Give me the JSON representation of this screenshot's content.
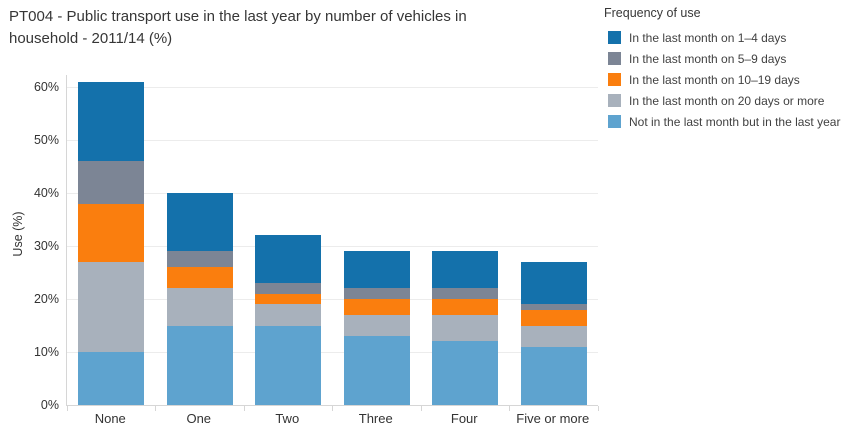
{
  "header": {
    "title": "PT004 - Public transport use in the last year by number of vehicles in household - 2011/14 (%)",
    "title_lines": [
      "PT004 - Public transport use in the last year by number of vehicles in",
      "household - 2011/14 (%)"
    ]
  },
  "legend": {
    "title": "Frequency of use"
  },
  "y_axis": {
    "title": "Use (%)",
    "ticks": [
      {
        "label": "0%",
        "value": 0
      },
      {
        "label": "10%",
        "value": 10
      },
      {
        "label": "20%",
        "value": 20
      },
      {
        "label": "30%",
        "value": 30
      },
      {
        "label": "40%",
        "value": 40
      },
      {
        "label": "50%",
        "value": 50
      },
      {
        "label": "60%",
        "value": 60
      }
    ]
  },
  "chart_data": {
    "type": "bar",
    "stacked": true,
    "title": "PT004 - Public transport use in the last year by number of vehicles in household - 2011/14 (%)",
    "xlabel": "",
    "ylabel": "Use (%)",
    "ylim": [
      0,
      62
    ],
    "grid": true,
    "legend_title": "Frequency of use",
    "legend_position": "top-right",
    "categories": [
      "None",
      "One",
      "Two",
      "Three",
      "Four",
      "Five or more"
    ],
    "series": [
      {
        "name": "In the last month on 1–4 days",
        "color": "#1471ab",
        "values": [
          15,
          11,
          9,
          7,
          7,
          8
        ]
      },
      {
        "name": "In the last month on 5–9 days",
        "color": "#7c8595",
        "values": [
          8,
          3,
          2,
          2,
          2,
          1
        ]
      },
      {
        "name": "In the last month on 10–19 days",
        "color": "#fa7e0e",
        "values": [
          11,
          4,
          2,
          3,
          3,
          3
        ]
      },
      {
        "name": "In the last month on 20 days or more",
        "color": "#a8b1bc",
        "values": [
          17,
          7,
          4,
          4,
          5,
          4
        ]
      },
      {
        "name": "Not in the last month but in the last year",
        "color": "#5ea3cf",
        "values": [
          10,
          15,
          15,
          13,
          12,
          11
        ]
      }
    ],
    "totals": [
      61,
      40,
      32,
      29,
      29,
      27
    ],
    "stack_order_note": "last series is bottom of stack; first series is top"
  }
}
